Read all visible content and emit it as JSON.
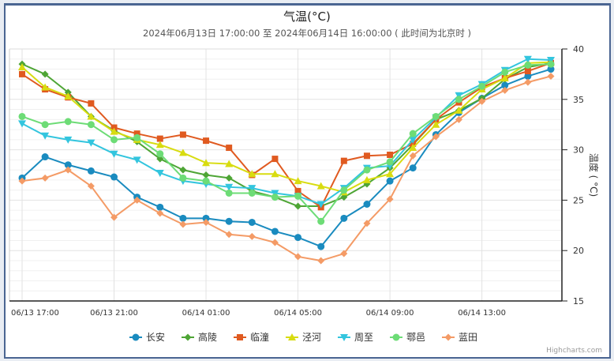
{
  "chart_data": {
    "type": "line",
    "title": "气温(°C)",
    "subtitle": "2024年06月13日 17:00:00 至 2024年06月14日 16:00:00 ( 此时间为北京时 )",
    "ylabel": "温度 ( °C)",
    "ylim": [
      15,
      40
    ],
    "yticks": [
      "15",
      "20",
      "25",
      "30",
      "35",
      "40"
    ],
    "y_axis_side": "right",
    "grid": true,
    "x": [
      "06/13 17:00",
      "06/13 18:00",
      "06/13 19:00",
      "06/13 20:00",
      "06/13 21:00",
      "06/13 22:00",
      "06/13 23:00",
      "06/14 00:00",
      "06/14 01:00",
      "06/14 02:00",
      "06/14 03:00",
      "06/14 04:00",
      "06/14 05:00",
      "06/14 06:00",
      "06/14 07:00",
      "06/14 08:00",
      "06/14 09:00",
      "06/14 10:00",
      "06/14 11:00",
      "06/14 12:00",
      "06/14 13:00",
      "06/14 14:00",
      "06/14 15:00",
      "06/14 16:00"
    ],
    "xtick_labels": [
      "06/13 17:00",
      "06/13 21:00",
      "06/14 01:00",
      "06/14 05:00",
      "06/14 09:00",
      "06/14 13:00"
    ],
    "legend_position": "bottom",
    "series": [
      {
        "name": "长安",
        "color": "#1a8bbf",
        "marker": "circle",
        "values": [
          27.2,
          29.3,
          28.5,
          27.9,
          27.3,
          25.3,
          24.3,
          23.2,
          23.2,
          22.9,
          22.8,
          21.9,
          21.3,
          20.4,
          23.2,
          24.6,
          26.9,
          28.2,
          31.5,
          33.7,
          35.1,
          36.4,
          37.3,
          38.0
        ]
      },
      {
        "name": "高陵",
        "color": "#4ea535",
        "marker": "diamond",
        "values": [
          38.5,
          37.5,
          35.7,
          33.3,
          31.9,
          30.8,
          29.1,
          28.0,
          27.5,
          27.2,
          25.9,
          25.3,
          24.4,
          24.4,
          25.3,
          26.6,
          28.2,
          30.5,
          33.0,
          33.9,
          35.1,
          37.0,
          38.2,
          38.6
        ]
      },
      {
        "name": "临潼",
        "color": "#e05a20",
        "marker": "square",
        "values": [
          37.5,
          36.0,
          35.2,
          34.6,
          32.2,
          31.6,
          31.1,
          31.5,
          30.9,
          30.2,
          27.5,
          29.1,
          25.9,
          24.3,
          28.9,
          29.4,
          29.5,
          30.6,
          33.0,
          34.7,
          36.2,
          37.1,
          37.8,
          38.6
        ]
      },
      {
        "name": "泾河",
        "color": "#d8dc10",
        "marker": "triangle",
        "values": [
          38.2,
          36.2,
          35.3,
          33.3,
          31.8,
          31.0,
          30.5,
          29.7,
          28.7,
          28.6,
          27.6,
          27.6,
          26.9,
          26.4,
          25.8,
          27.0,
          27.6,
          30.2,
          32.5,
          33.9,
          36.0,
          37.1,
          38.6,
          38.7
        ]
      },
      {
        "name": "周至",
        "color": "#33c5de",
        "marker": "triangle-down",
        "values": [
          32.6,
          31.4,
          31.0,
          30.7,
          29.6,
          29.0,
          27.7,
          26.9,
          26.6,
          26.3,
          26.2,
          25.7,
          25.4,
          24.6,
          26.2,
          28.2,
          28.4,
          31.0,
          33.2,
          35.4,
          36.5,
          37.9,
          39.0,
          38.9
        ]
      },
      {
        "name": "鄠邑",
        "color": "#6ddc76",
        "marker": "circle",
        "values": [
          33.3,
          32.5,
          32.8,
          32.5,
          31.0,
          31.2,
          29.6,
          27.2,
          26.9,
          25.7,
          25.7,
          25.3,
          25.4,
          22.9,
          26.0,
          28.0,
          28.8,
          31.6,
          33.3,
          35.0,
          36.3,
          37.7,
          38.4,
          38.5
        ]
      },
      {
        "name": "蓝田",
        "color": "#f49b66",
        "marker": "diamond",
        "values": [
          26.9,
          27.2,
          28.0,
          26.4,
          23.3,
          25.0,
          23.7,
          22.6,
          22.8,
          21.6,
          21.4,
          20.8,
          19.4,
          19.0,
          19.7,
          22.7,
          25.1,
          29.4,
          31.3,
          33.0,
          34.8,
          35.9,
          36.7,
          37.3
        ]
      }
    ]
  },
  "credits": "Highcharts.com"
}
